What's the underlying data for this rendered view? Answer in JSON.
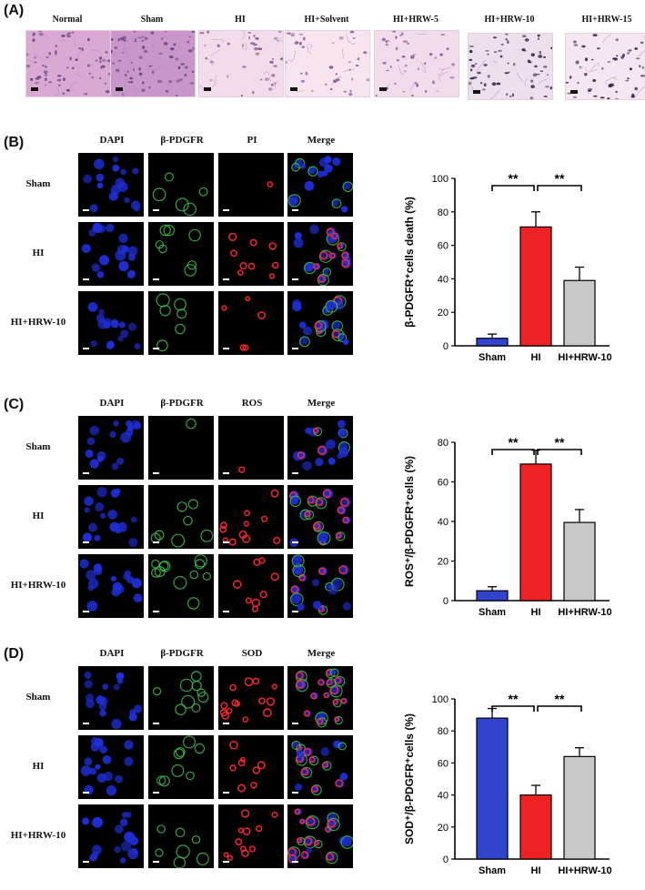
{
  "panelA": {
    "label": "(A)",
    "groups": [
      "Normal",
      "Sham",
      "HI",
      "HI+Solvent",
      "HI+HRW-5",
      "HI+HRW-10",
      "HI+HRW-15"
    ]
  },
  "panelB": {
    "label": "(B)",
    "columns": [
      "DAPI",
      "β-PDGFR",
      "PI",
      "Merge"
    ],
    "rows": [
      "Sham",
      "HI",
      "HI+HRW-10"
    ]
  },
  "panelC": {
    "label": "(C)",
    "columns": [
      "DAPI",
      "β-PDGFR",
      "ROS",
      "Merge"
    ],
    "rows": [
      "Sham",
      "HI",
      "HI+HRW-10"
    ]
  },
  "panelD": {
    "label": "(D)",
    "columns": [
      "DAPI",
      "β-PDGFR",
      "SOD",
      "Merge"
    ],
    "rows": [
      "Sham",
      "HI",
      "HI+HRW-10"
    ]
  },
  "chart_data": [
    {
      "type": "bar",
      "categories": [
        "Sham",
        "HI",
        "HI+HRW-10"
      ],
      "values": [
        4.5,
        71,
        39
      ],
      "errors": [
        2.5,
        9,
        8
      ],
      "ylabel": "β-PDGFR⁺cells death (%)",
      "ylim": [
        0,
        100
      ],
      "yticks": [
        0,
        20,
        40,
        60,
        80,
        100
      ],
      "colors": [
        "#3344cc",
        "#ee2222",
        "#c8c8c8"
      ],
      "significance": [
        {
          "from": 0,
          "to": 1,
          "text": "**"
        },
        {
          "from": 1,
          "to": 2,
          "text": "**"
        }
      ]
    },
    {
      "type": "bar",
      "categories": [
        "Sham",
        "HI",
        "HI+HRW-10"
      ],
      "values": [
        5,
        69,
        39.5
      ],
      "errors": [
        2,
        7,
        6.5
      ],
      "ylabel": "ROS⁺/β-PDGFR⁺cells (%)",
      "ylim": [
        0,
        80
      ],
      "yticks": [
        0,
        20,
        40,
        60,
        80
      ],
      "colors": [
        "#3344cc",
        "#ee2222",
        "#c8c8c8"
      ],
      "significance": [
        {
          "from": 0,
          "to": 1,
          "text": "**"
        },
        {
          "from": 1,
          "to": 2,
          "text": "**"
        }
      ]
    },
    {
      "type": "bar",
      "categories": [
        "Sham",
        "HI",
        "HI+HRW-10"
      ],
      "values": [
        88,
        40,
        64
      ],
      "errors": [
        6,
        6,
        5.5
      ],
      "ylabel": "SOD⁺/β-PDGFR⁺cells (%)",
      "ylim": [
        0,
        100
      ],
      "yticks": [
        0,
        20,
        40,
        60,
        80,
        100
      ],
      "colors": [
        "#3344cc",
        "#ee2222",
        "#c8c8c8"
      ],
      "significance": [
        {
          "from": 0,
          "to": 1,
          "text": "**"
        },
        {
          "from": 1,
          "to": 2,
          "text": "**"
        }
      ]
    }
  ]
}
